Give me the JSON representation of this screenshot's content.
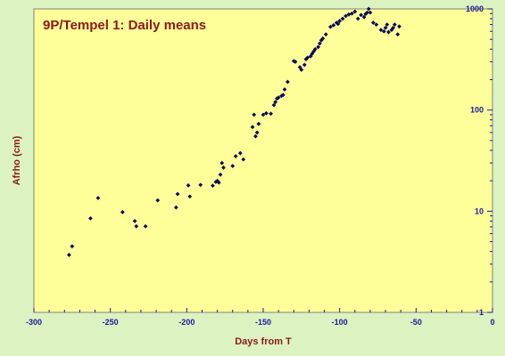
{
  "chart_data": {
    "type": "scatter",
    "title": "9P/Tempel 1: Daily means",
    "xlabel": "Days from T",
    "ylabel": "Afrho (cm)",
    "xlim": [
      -300,
      0
    ],
    "ylim": [
      1,
      1000
    ],
    "y_scale": "log",
    "y_axis_side": "right",
    "grid": false,
    "x_ticks": [
      -300,
      -250,
      -200,
      -150,
      -100,
      -50,
      0
    ],
    "x_tick_labels": [
      "-300",
      "-250",
      "-200",
      "-150",
      "-100",
      "-50",
      "0"
    ],
    "y_ticks": [
      1,
      10,
      100,
      1000
    ],
    "y_tick_labels": [
      "1",
      "10",
      "100",
      "1000"
    ],
    "colors": {
      "background": "#dcf3c1",
      "plot_area": "#ffff99",
      "markers": "#0a0a5a",
      "title": "#8b1a1a",
      "ticks": "#1a1a9c"
    },
    "series": [
      {
        "marker": "diamond",
        "points": [
          [
            -277,
            3.7
          ],
          [
            -275,
            4.5
          ],
          [
            -263,
            8.5
          ],
          [
            -258,
            13.5
          ],
          [
            -242,
            9.8
          ],
          [
            -234,
            8.0
          ],
          [
            -233,
            7.1
          ],
          [
            -227,
            7.1
          ],
          [
            -219,
            12.8
          ],
          [
            -207,
            10.9
          ],
          [
            -206,
            14.8
          ],
          [
            -199,
            18.0
          ],
          [
            -198,
            14.0
          ],
          [
            -191,
            18.2
          ],
          [
            -183,
            17.9
          ],
          [
            -181,
            19.5
          ],
          [
            -180,
            20.0
          ],
          [
            -179,
            19.2
          ],
          [
            -178,
            23.0
          ],
          [
            -177,
            30.0
          ],
          [
            -176,
            27.0
          ],
          [
            -170,
            28.0
          ],
          [
            -168,
            35.0
          ],
          [
            -165,
            37.5
          ],
          [
            -163,
            32.5
          ],
          [
            -157,
            68.0
          ],
          [
            -156,
            90.0
          ],
          [
            -155,
            55.0
          ],
          [
            -154,
            60.0
          ],
          [
            -153,
            73.0
          ],
          [
            -150,
            90.0
          ],
          [
            -148,
            93.0
          ],
          [
            -145,
            92.0
          ],
          [
            -143,
            112.0
          ],
          [
            -142,
            120.0
          ],
          [
            -141,
            130.0
          ],
          [
            -140,
            133.0
          ],
          [
            -138,
            138.0
          ],
          [
            -137,
            141.0
          ],
          [
            -136,
            160.0
          ],
          [
            -134,
            190.0
          ],
          [
            -130,
            305.0
          ],
          [
            -129,
            300.0
          ],
          [
            -126,
            265.0
          ],
          [
            -125,
            250.0
          ],
          [
            -123,
            280.0
          ],
          [
            -122,
            318.0
          ],
          [
            -121,
            330.0
          ],
          [
            -119,
            340.0
          ],
          [
            -118,
            360.0
          ],
          [
            -117,
            380.0
          ],
          [
            -116,
            400.0
          ],
          [
            -114,
            420.0
          ],
          [
            -113,
            455.0
          ],
          [
            -112,
            490.0
          ],
          [
            -111,
            510.0
          ],
          [
            -109,
            560.0
          ],
          [
            -106,
            665.0
          ],
          [
            -104,
            690.0
          ],
          [
            -102,
            730.0
          ],
          [
            -101,
            710.0
          ],
          [
            -100,
            760.0
          ],
          [
            -98,
            800.0
          ],
          [
            -96,
            850.0
          ],
          [
            -94,
            880.0
          ],
          [
            -92,
            900.0
          ],
          [
            -90,
            940.0
          ],
          [
            -88,
            800.0
          ],
          [
            -86,
            870.0
          ],
          [
            -84,
            830.0
          ],
          [
            -83,
            890.0
          ],
          [
            -82,
            920.0
          ],
          [
            -81,
            1000.0
          ],
          [
            -80,
            920.0
          ],
          [
            -78,
            730.0
          ],
          [
            -76,
            700.0
          ],
          [
            -73,
            620.0
          ],
          [
            -71,
            600.0
          ],
          [
            -70,
            650.0
          ],
          [
            -69,
            700.0
          ],
          [
            -68,
            590.0
          ],
          [
            -66,
            620.0
          ],
          [
            -65,
            650.0
          ],
          [
            -64,
            700.0
          ],
          [
            -62,
            560.0
          ],
          [
            -61,
            670.0
          ]
        ]
      }
    ]
  }
}
